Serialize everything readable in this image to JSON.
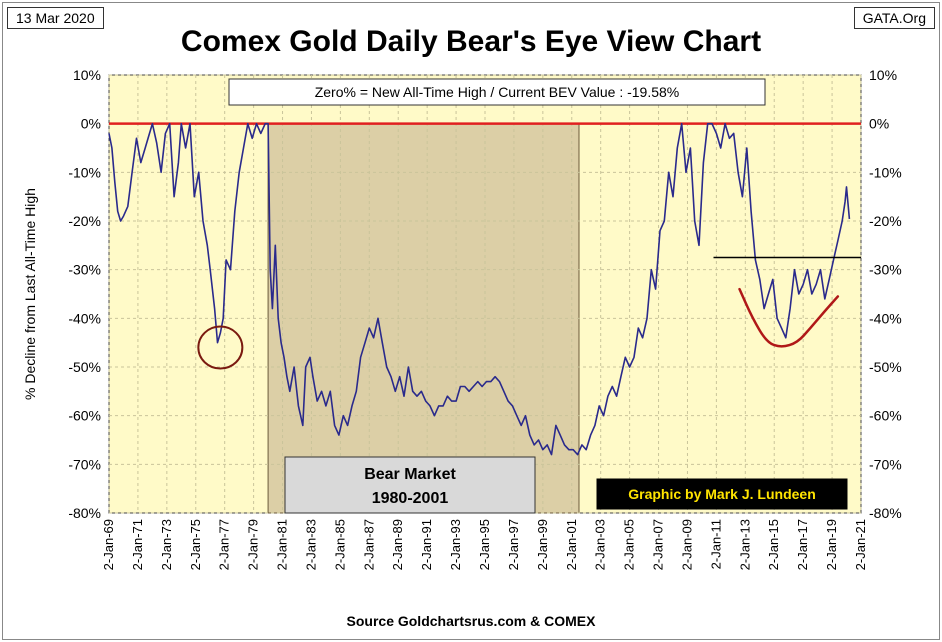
{
  "header": {
    "date": "13 Mar 2020",
    "source": "GATA.Org"
  },
  "footer": {
    "source_text": "Source Goldchartsrus.com & COMEX"
  },
  "colors": {
    "plot_bg": "#fffac8",
    "bear_shade": "#dccfa6",
    "line": "#2a2a8c",
    "zero_line": "#e02020",
    "annotation_red": "#b01818",
    "annotation_dark": "#7a1a10"
  },
  "chart_data": {
    "type": "line",
    "title": "Comex Gold Daily Bear's Eye View Chart",
    "ylabel": "% Decline from Last All-Time High",
    "ylabel_right": "",
    "ylim": [
      -80,
      10
    ],
    "yticks": [
      "10%",
      "0%",
      "-10%",
      "-20%",
      "-30%",
      "-40%",
      "-50%",
      "-60%",
      "-70%",
      "-80%"
    ],
    "ytick_values": [
      10,
      0,
      -10,
      -20,
      -30,
      -40,
      -50,
      -60,
      -70,
      -80
    ],
    "xlim": [
      1969.0,
      2021.0
    ],
    "xtick_labels": [
      "2-Jan-69",
      "2-Jan-71",
      "2-Jan-73",
      "2-Jan-75",
      "2-Jan-77",
      "2-Jan-79",
      "2-Jan-81",
      "2-Jan-83",
      "2-Jan-85",
      "2-Jan-87",
      "2-Jan-89",
      "2-Jan-91",
      "2-Jan-93",
      "2-Jan-95",
      "2-Jan-97",
      "2-Jan-99",
      "2-Jan-01",
      "2-Jan-03",
      "2-Jan-05",
      "2-Jan-07",
      "2-Jan-09",
      "2-Jan-11",
      "2-Jan-13",
      "2-Jan-15",
      "2-Jan-17",
      "2-Jan-19",
      "2-Jan-21"
    ],
    "xtick_values": [
      1969,
      1971,
      1973,
      1975,
      1977,
      1979,
      1981,
      1983,
      1985,
      1987,
      1989,
      1991,
      1993,
      1995,
      1997,
      1999,
      2001,
      2003,
      2005,
      2007,
      2009,
      2011,
      2013,
      2015,
      2017,
      2019,
      2021
    ],
    "grid": true,
    "series": [
      {
        "x": [
          1969.0,
          1969.2,
          1969.4,
          1969.6,
          1969.8,
          1970.0,
          1970.3,
          1970.6,
          1970.9,
          1971.2,
          1971.5,
          1971.8,
          1972.0,
          1972.3,
          1972.6,
          1972.9,
          1973.2,
          1973.5,
          1973.8,
          1974.0,
          1974.3,
          1974.6,
          1974.9,
          1975.2,
          1975.5,
          1975.8,
          1976.0,
          1976.3,
          1976.5,
          1976.7,
          1976.9,
          1977.1,
          1977.4,
          1977.7,
          1978.0,
          1978.3,
          1978.6,
          1978.9,
          1979.2,
          1979.5,
          1979.8,
          1980.0,
          1980.05,
          1980.15,
          1980.3,
          1980.5,
          1980.7,
          1980.9,
          1981.1,
          1981.3,
          1981.5,
          1981.8,
          1982.1,
          1982.4,
          1982.6,
          1982.9,
          1983.1,
          1983.4,
          1983.7,
          1984.0,
          1984.3,
          1984.6,
          1984.9,
          1985.2,
          1985.5,
          1985.8,
          1986.1,
          1986.4,
          1986.7,
          1987.0,
          1987.3,
          1987.6,
          1987.9,
          1988.2,
          1988.5,
          1988.8,
          1989.1,
          1989.4,
          1989.7,
          1990.0,
          1990.3,
          1990.6,
          1990.9,
          1991.2,
          1991.5,
          1991.8,
          1992.1,
          1992.4,
          1992.7,
          1993.0,
          1993.3,
          1993.6,
          1993.9,
          1994.2,
          1994.5,
          1994.8,
          1995.1,
          1995.4,
          1995.7,
          1996.0,
          1996.3,
          1996.6,
          1996.9,
          1997.2,
          1997.5,
          1997.8,
          1998.1,
          1998.4,
          1998.7,
          1999.0,
          1999.3,
          1999.6,
          1999.9,
          2000.2,
          2000.5,
          2000.8,
          2001.1,
          2001.4,
          2001.7,
          2002.0,
          2002.3,
          2002.6,
          2002.9,
          2003.2,
          2003.5,
          2003.8,
          2004.1,
          2004.4,
          2004.7,
          2005.0,
          2005.3,
          2005.6,
          2005.9,
          2006.2,
          2006.5,
          2006.8,
          2007.1,
          2007.4,
          2007.7,
          2008.0,
          2008.3,
          2008.6,
          2008.9,
          2009.2,
          2009.5,
          2009.8,
          2010.1,
          2010.4,
          2010.7,
          2011.0,
          2011.3,
          2011.6,
          2011.9,
          2012.2,
          2012.5,
          2012.8,
          2013.1,
          2013.4,
          2013.7,
          2014.0,
          2014.3,
          2014.6,
          2014.9,
          2015.2,
          2015.5,
          2015.8,
          2016.1,
          2016.4,
          2016.7,
          2017.0,
          2017.3,
          2017.6,
          2017.9,
          2018.2,
          2018.5,
          2018.8,
          2019.1,
          2019.4,
          2019.7,
          2019.9,
          2020.0,
          2020.2
        ],
        "y": [
          -2,
          -5,
          -12,
          -18,
          -20,
          -19,
          -17,
          -10,
          -3,
          -8,
          -5,
          -2,
          0,
          -4,
          -10,
          -2,
          0,
          -15,
          -8,
          0,
          -5,
          0,
          -15,
          -10,
          -20,
          -25,
          -30,
          -38,
          -45,
          -43,
          -40,
          -28,
          -30,
          -18,
          -10,
          -5,
          0,
          -3,
          0,
          -2,
          0,
          0,
          -10,
          -30,
          -38,
          -25,
          -40,
          -45,
          -48,
          -52,
          -55,
          -50,
          -58,
          -62,
          -50,
          -48,
          -52,
          -57,
          -55,
          -58,
          -55,
          -62,
          -64,
          -60,
          -62,
          -58,
          -55,
          -48,
          -45,
          -42,
          -44,
          -40,
          -45,
          -50,
          -52,
          -55,
          -52,
          -56,
          -50,
          -55,
          -56,
          -55,
          -57,
          -58,
          -60,
          -58,
          -58,
          -56,
          -57,
          -57,
          -54,
          -54,
          -55,
          -54,
          -53,
          -54,
          -53,
          -53,
          -52,
          -53,
          -55,
          -57,
          -58,
          -60,
          -62,
          -60,
          -64,
          -66,
          -65,
          -67,
          -66,
          -68,
          -62,
          -64,
          -66,
          -67,
          -67,
          -68,
          -66,
          -67,
          -64,
          -62,
          -58,
          -60,
          -56,
          -54,
          -56,
          -52,
          -48,
          -50,
          -48,
          -42,
          -44,
          -40,
          -30,
          -34,
          -22,
          -20,
          -10,
          -15,
          -5,
          0,
          -10,
          -5,
          -20,
          -25,
          -8,
          0,
          0,
          -2,
          -5,
          0,
          -3,
          -2,
          -10,
          -15,
          -5,
          -18,
          -28,
          -32,
          -38,
          -35,
          -32,
          -40,
          -42,
          -44,
          -38,
          -30,
          -35,
          -33,
          -30,
          -35,
          -33,
          -30,
          -36,
          -32,
          -28,
          -24,
          -20,
          -16,
          -13,
          -19.58
        ]
      }
    ],
    "annotations": {
      "info_box": "Zero% = New All-Time High  / Current  BEV Value :  -19.58%",
      "bear_label_line1": "Bear Market",
      "bear_label_line2": "1980-2001",
      "bear_range": [
        1980.0,
        2001.5
      ],
      "credit": "Graphic by Mark J. Lundeen",
      "circle_center": [
        1976.7,
        -46
      ],
      "black_line_y": -27.5,
      "black_line_x": [
        2010.8,
        2021.0
      ],
      "red_curve": [
        [
          2012.6,
          -34
        ],
        [
          2013.5,
          -40
        ],
        [
          2014.5,
          -45
        ],
        [
          2015.5,
          -46
        ],
        [
          2016.6,
          -45
        ],
        [
          2017.5,
          -42
        ],
        [
          2018.5,
          -38.5
        ],
        [
          2019.4,
          -35.5
        ]
      ]
    }
  }
}
